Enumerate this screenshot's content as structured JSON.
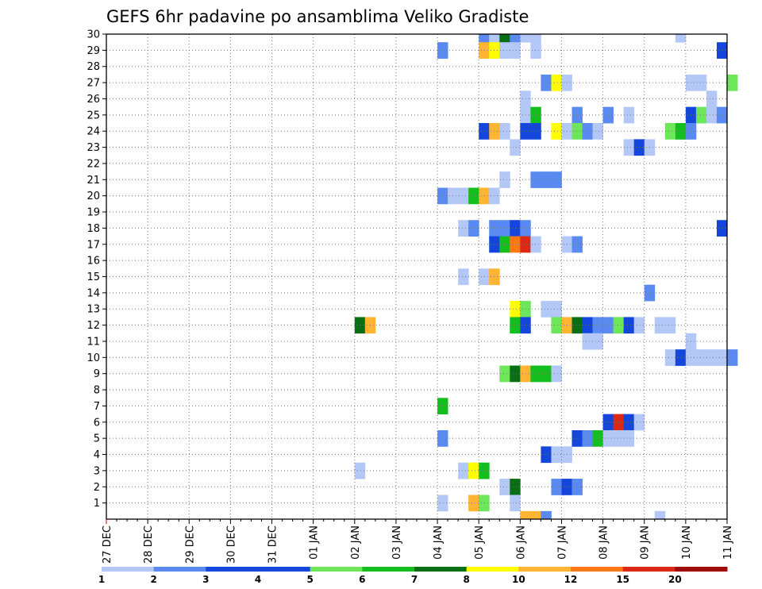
{
  "chart_data": {
    "type": "heatmap",
    "title": "GEFS 6hr padavine po ansamblima Veliko Gradiste",
    "x_tick_labels": [
      "27 DEC",
      "28 DEC",
      "29 DEC",
      "30 DEC",
      "31 DEC",
      "01 JAN",
      "02 JAN",
      "03 JAN",
      "04 JAN",
      "05 JAN",
      "06 JAN",
      "07 JAN",
      "08 JAN",
      "09 JAN",
      "10 JAN",
      "11 JAN"
    ],
    "y_tick_labels": [
      "1",
      "2",
      "3",
      "4",
      "5",
      "6",
      "7",
      "8",
      "9",
      "10",
      "11",
      "12",
      "13",
      "14",
      "15",
      "16",
      "17",
      "18",
      "19",
      "20",
      "21",
      "22",
      "23",
      "24",
      "25",
      "26",
      "27",
      "28",
      "29",
      "30"
    ],
    "grid": true,
    "colorbar": {
      "placement": "bottom",
      "labels": [
        "1",
        "2",
        "3",
        "4",
        "5",
        "6",
        "7",
        "8",
        "10",
        "12",
        "15",
        "20"
      ],
      "colors": [
        "#b4c8f8",
        "#5a8af0",
        "#1446dc",
        "#1446dc",
        "#6ee65a",
        "#14be1e",
        "#0a6e14",
        "#ffff00",
        "#ffb432",
        "#ff7814",
        "#dc2814",
        "#a00a0a",
        "#6e0000"
      ]
    },
    "cells": [
      {
        "d": 9.0,
        "m": 30,
        "c": 2
      },
      {
        "d": 9.25,
        "m": 30,
        "c": 1
      },
      {
        "d": 9.5,
        "m": 30,
        "c": 7
      },
      {
        "d": 9.75,
        "m": 30,
        "c": 2
      },
      {
        "d": 10.0,
        "m": 30,
        "c": 1
      },
      {
        "d": 10.25,
        "m": 30,
        "c": 1
      },
      {
        "d": 13.75,
        "m": 30,
        "c": 1
      },
      {
        "d": 8.0,
        "m": 29,
        "c": 2
      },
      {
        "d": 9.0,
        "m": 29,
        "c": 10
      },
      {
        "d": 9.25,
        "m": 29,
        "c": 8
      },
      {
        "d": 9.5,
        "m": 29,
        "c": 1
      },
      {
        "d": 9.75,
        "m": 29,
        "c": 1
      },
      {
        "d": 10.25,
        "m": 29,
        "c": 1
      },
      {
        "d": 14.75,
        "m": 29,
        "c": 3
      },
      {
        "d": 10.5,
        "m": 27,
        "c": 2
      },
      {
        "d": 10.75,
        "m": 27,
        "c": 8
      },
      {
        "d": 11.0,
        "m": 27,
        "c": 1
      },
      {
        "d": 14.0,
        "m": 27,
        "c": 1
      },
      {
        "d": 14.25,
        "m": 27,
        "c": 1
      },
      {
        "d": 15.0,
        "m": 27,
        "c": 5
      },
      {
        "d": 10.0,
        "m": 26,
        "c": 1
      },
      {
        "d": 14.5,
        "m": 26,
        "c": 1
      },
      {
        "d": 10.0,
        "m": 25,
        "c": 1
      },
      {
        "d": 10.25,
        "m": 25,
        "c": 6
      },
      {
        "d": 11.25,
        "m": 25,
        "c": 2
      },
      {
        "d": 12.0,
        "m": 25,
        "c": 2
      },
      {
        "d": 12.5,
        "m": 25,
        "c": 1
      },
      {
        "d": 14.0,
        "m": 25,
        "c": 3
      },
      {
        "d": 14.25,
        "m": 25,
        "c": 5
      },
      {
        "d": 14.5,
        "m": 25,
        "c": 1
      },
      {
        "d": 14.75,
        "m": 25,
        "c": 2
      },
      {
        "d": 9.0,
        "m": 24,
        "c": 3
      },
      {
        "d": 9.25,
        "m": 24,
        "c": 10
      },
      {
        "d": 9.5,
        "m": 24,
        "c": 1
      },
      {
        "d": 10.0,
        "m": 24,
        "c": 3
      },
      {
        "d": 10.25,
        "m": 24,
        "c": 3
      },
      {
        "d": 10.75,
        "m": 24,
        "c": 8
      },
      {
        "d": 11.0,
        "m": 24,
        "c": 1
      },
      {
        "d": 11.25,
        "m": 24,
        "c": 5
      },
      {
        "d": 11.5,
        "m": 24,
        "c": 2
      },
      {
        "d": 11.75,
        "m": 24,
        "c": 1
      },
      {
        "d": 13.5,
        "m": 24,
        "c": 5
      },
      {
        "d": 13.75,
        "m": 24,
        "c": 6
      },
      {
        "d": 14.0,
        "m": 24,
        "c": 2
      },
      {
        "d": 9.75,
        "m": 23,
        "c": 1
      },
      {
        "d": 12.5,
        "m": 23,
        "c": 1
      },
      {
        "d": 12.75,
        "m": 23,
        "c": 3
      },
      {
        "d": 13.0,
        "m": 23,
        "c": 1
      },
      {
        "d": 9.5,
        "m": 21,
        "c": 1
      },
      {
        "d": 10.25,
        "m": 21,
        "c": 2
      },
      {
        "d": 10.5,
        "m": 21,
        "c": 2
      },
      {
        "d": 10.75,
        "m": 21,
        "c": 2
      },
      {
        "d": 8.0,
        "m": 20,
        "c": 2
      },
      {
        "d": 8.25,
        "m": 20,
        "c": 1
      },
      {
        "d": 8.5,
        "m": 20,
        "c": 1
      },
      {
        "d": 8.75,
        "m": 20,
        "c": 6
      },
      {
        "d": 9.0,
        "m": 20,
        "c": 10
      },
      {
        "d": 9.25,
        "m": 20,
        "c": 1
      },
      {
        "d": 8.5,
        "m": 18,
        "c": 1
      },
      {
        "d": 8.75,
        "m": 18,
        "c": 2
      },
      {
        "d": 9.25,
        "m": 18,
        "c": 2
      },
      {
        "d": 9.5,
        "m": 18,
        "c": 2
      },
      {
        "d": 9.75,
        "m": 18,
        "c": 3
      },
      {
        "d": 10.0,
        "m": 18,
        "c": 2
      },
      {
        "d": 14.75,
        "m": 18,
        "c": 3
      },
      {
        "d": 9.25,
        "m": 17,
        "c": 3
      },
      {
        "d": 9.5,
        "m": 17,
        "c": 6
      },
      {
        "d": 9.75,
        "m": 17,
        "c": 12
      },
      {
        "d": 10.0,
        "m": 17,
        "c": 15
      },
      {
        "d": 10.25,
        "m": 17,
        "c": 1
      },
      {
        "d": 11.0,
        "m": 17,
        "c": 1
      },
      {
        "d": 11.25,
        "m": 17,
        "c": 2
      },
      {
        "d": 8.5,
        "m": 15,
        "c": 1
      },
      {
        "d": 9.0,
        "m": 15,
        "c": 1
      },
      {
        "d": 9.25,
        "m": 15,
        "c": 10
      },
      {
        "d": 13.0,
        "m": 14,
        "c": 2
      },
      {
        "d": 9.75,
        "m": 13,
        "c": 8
      },
      {
        "d": 10.0,
        "m": 13,
        "c": 5
      },
      {
        "d": 10.5,
        "m": 13,
        "c": 1
      },
      {
        "d": 10.75,
        "m": 13,
        "c": 1
      },
      {
        "d": 6.0,
        "m": 12,
        "c": 7
      },
      {
        "d": 6.25,
        "m": 12,
        "c": 10
      },
      {
        "d": 9.75,
        "m": 12,
        "c": 6
      },
      {
        "d": 10.0,
        "m": 12,
        "c": 3
      },
      {
        "d": 10.75,
        "m": 12,
        "c": 5
      },
      {
        "d": 11.0,
        "m": 12,
        "c": 10
      },
      {
        "d": 11.25,
        "m": 12,
        "c": 7
      },
      {
        "d": 11.5,
        "m": 12,
        "c": 3
      },
      {
        "d": 11.75,
        "m": 12,
        "c": 2
      },
      {
        "d": 12.0,
        "m": 12,
        "c": 2
      },
      {
        "d": 12.25,
        "m": 12,
        "c": 5
      },
      {
        "d": 12.5,
        "m": 12,
        "c": 3
      },
      {
        "d": 12.75,
        "m": 12,
        "c": 1
      },
      {
        "d": 13.25,
        "m": 12,
        "c": 1
      },
      {
        "d": 13.5,
        "m": 12,
        "c": 1
      },
      {
        "d": 11.5,
        "m": 11,
        "c": 1
      },
      {
        "d": 11.75,
        "m": 11,
        "c": 1
      },
      {
        "d": 14.0,
        "m": 11,
        "c": 1
      },
      {
        "d": 13.5,
        "m": 10,
        "c": 1
      },
      {
        "d": 13.75,
        "m": 10,
        "c": 3
      },
      {
        "d": 14.0,
        "m": 10,
        "c": 1
      },
      {
        "d": 14.25,
        "m": 10,
        "c": 1
      },
      {
        "d": 14.5,
        "m": 10,
        "c": 1
      },
      {
        "d": 14.75,
        "m": 10,
        "c": 1
      },
      {
        "d": 15.0,
        "m": 10,
        "c": 2
      },
      {
        "d": 9.5,
        "m": 9,
        "c": 5
      },
      {
        "d": 9.75,
        "m": 9,
        "c": 7
      },
      {
        "d": 10.0,
        "m": 9,
        "c": 10
      },
      {
        "d": 10.25,
        "m": 9,
        "c": 6
      },
      {
        "d": 10.5,
        "m": 9,
        "c": 6
      },
      {
        "d": 10.75,
        "m": 9,
        "c": 1
      },
      {
        "d": 8.0,
        "m": 7,
        "c": 6
      },
      {
        "d": 12.0,
        "m": 6,
        "c": 3
      },
      {
        "d": 12.25,
        "m": 6,
        "c": 15
      },
      {
        "d": 12.5,
        "m": 6,
        "c": 3
      },
      {
        "d": 12.75,
        "m": 6,
        "c": 1
      },
      {
        "d": 8.0,
        "m": 5,
        "c": 2
      },
      {
        "d": 11.25,
        "m": 5,
        "c": 3
      },
      {
        "d": 11.5,
        "m": 5,
        "c": 2
      },
      {
        "d": 11.75,
        "m": 5,
        "c": 6
      },
      {
        "d": 12.0,
        "m": 5,
        "c": 1
      },
      {
        "d": 12.25,
        "m": 5,
        "c": 1
      },
      {
        "d": 12.5,
        "m": 5,
        "c": 1
      },
      {
        "d": 10.5,
        "m": 4,
        "c": 3
      },
      {
        "d": 10.75,
        "m": 4,
        "c": 1
      },
      {
        "d": 11.0,
        "m": 4,
        "c": 1
      },
      {
        "d": 6.0,
        "m": 3,
        "c": 1
      },
      {
        "d": 8.5,
        "m": 3,
        "c": 1
      },
      {
        "d": 8.75,
        "m": 3,
        "c": 8
      },
      {
        "d": 9.0,
        "m": 3,
        "c": 6
      },
      {
        "d": 9.5,
        "m": 2,
        "c": 1
      },
      {
        "d": 9.75,
        "m": 2,
        "c": 7
      },
      {
        "d": 10.75,
        "m": 2,
        "c": 2
      },
      {
        "d": 11.0,
        "m": 2,
        "c": 3
      },
      {
        "d": 11.25,
        "m": 2,
        "c": 2
      },
      {
        "d": 8.0,
        "m": 1,
        "c": 1
      },
      {
        "d": 8.75,
        "m": 1,
        "c": 10
      },
      {
        "d": 9.0,
        "m": 1,
        "c": 5
      },
      {
        "d": 9.75,
        "m": 1,
        "c": 1
      },
      {
        "d": 10.0,
        "m": 0,
        "c": 10
      },
      {
        "d": 10.25,
        "m": 0,
        "c": 10
      },
      {
        "d": 10.5,
        "m": 0,
        "c": 2
      },
      {
        "d": 13.25,
        "m": 0,
        "c": 1
      }
    ]
  }
}
